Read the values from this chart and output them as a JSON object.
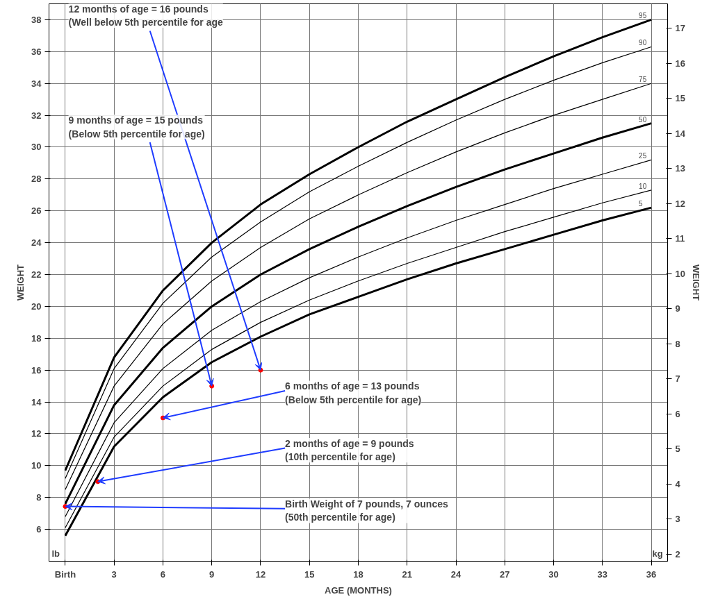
{
  "chart_data": {
    "type": "line",
    "xlabel": "AGE (MONTHS)",
    "ylabel": "WEIGHT",
    "y2label": "WEIGHT",
    "x": [
      0,
      3,
      6,
      9,
      12,
      15,
      18,
      21,
      24,
      27,
      30,
      33,
      36
    ],
    "xlim": [
      -1,
      37
    ],
    "ylim": [
      4,
      39
    ],
    "y2lim": [
      1.8,
      17.7
    ],
    "xticks": [
      {
        "value": 0,
        "label": "Birth"
      },
      3,
      6,
      9,
      12,
      15,
      18,
      21,
      24,
      27,
      30,
      33,
      36
    ],
    "yticks": [
      6,
      8,
      10,
      12,
      14,
      16,
      18,
      20,
      22,
      24,
      26,
      28,
      30,
      32,
      34,
      36,
      38
    ],
    "y2ticks": [
      2,
      3,
      4,
      5,
      6,
      7,
      8,
      9,
      10,
      11,
      12,
      13,
      14,
      15,
      16,
      17
    ],
    "grid": true,
    "marker": "none",
    "line_style": "solid",
    "series": [
      {
        "name": "5",
        "color": "#000000",
        "values": [
          5.6,
          11.2,
          14.3,
          16.5,
          18.1,
          19.5,
          20.6,
          21.7,
          22.7,
          23.6,
          24.5,
          25.4,
          26.2
        ]
      },
      {
        "name": "10",
        "color": "#000000",
        "values": [
          6.1,
          11.8,
          15.0,
          17.3,
          19.0,
          20.4,
          21.6,
          22.7,
          23.7,
          24.7,
          25.6,
          26.5,
          27.3
        ]
      },
      {
        "name": "25",
        "color": "#000000",
        "values": [
          6.8,
          12.7,
          16.1,
          18.5,
          20.3,
          21.8,
          23.1,
          24.3,
          25.4,
          26.4,
          27.4,
          28.3,
          29.2
        ]
      },
      {
        "name": "50",
        "color": "#000000",
        "values": [
          7.6,
          13.8,
          17.4,
          20.0,
          22.0,
          23.6,
          25.0,
          26.3,
          27.5,
          28.6,
          29.6,
          30.6,
          31.5
        ]
      },
      {
        "name": "75",
        "color": "#000000",
        "values": [
          8.5,
          15.0,
          18.9,
          21.6,
          23.7,
          25.5,
          27.0,
          28.4,
          29.7,
          30.9,
          32.0,
          33.0,
          34.0
        ]
      },
      {
        "name": "90",
        "color": "#000000",
        "values": [
          9.2,
          16.1,
          20.2,
          23.1,
          25.3,
          27.2,
          28.8,
          30.3,
          31.7,
          33.0,
          34.2,
          35.3,
          36.3
        ]
      },
      {
        "name": "95",
        "color": "#000000",
        "values": [
          9.7,
          16.8,
          21.0,
          24.0,
          26.4,
          28.3,
          30.0,
          31.6,
          33.0,
          34.4,
          35.7,
          36.9,
          38.0
        ]
      },
      {
        "type": "scatter",
        "marker": "circle",
        "color": "#ff0000",
        "x": [
          0,
          2,
          6,
          9,
          12
        ],
        "values": [
          7.44,
          9,
          13,
          15,
          16
        ]
      }
    ],
    "annotations": [
      {
        "text": "12 months of age = 16 pounds\n(Well below 5th percentile for age",
        "x": 12,
        "y": 16
      },
      {
        "text": "9 months of age = 15 pounds\n(Below 5th percentile for age)",
        "x": 9,
        "y": 15
      },
      {
        "text": "6 months of age = 13 pounds\n(Below 5th percentile for age)",
        "x": 6,
        "y": 13
      },
      {
        "text": "2 months of age = 9 pounds\n(10th percentile for age)",
        "x": 2,
        "y": 9
      },
      {
        "text": "Birth Weight of 7 pounds, 7 ounces\n(50th percentile for age)",
        "x": 0,
        "y": 7.44
      },
      "lb",
      "kg"
    ]
  }
}
